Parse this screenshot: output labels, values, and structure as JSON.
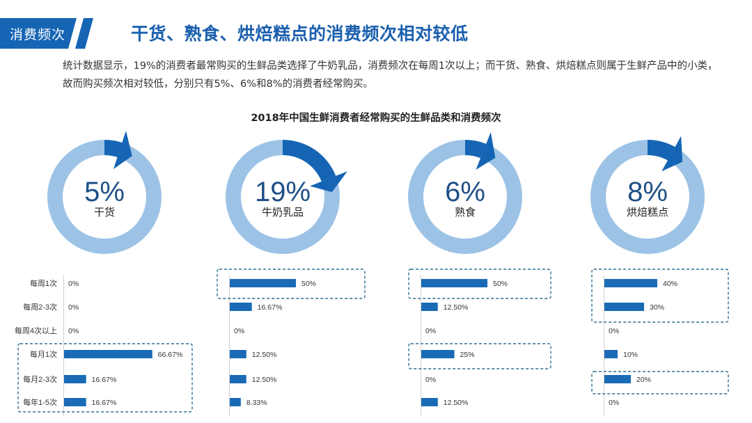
{
  "section_tag": "消费频次",
  "page_title": "干货、熟食、烘焙糕点的消费频次相对较低",
  "intro_text": "统计数据显示，19%的消费者最常购买的生鲜品类选择了牛奶乳品，消费频次在每周1次以上；而干货、熟食、烘焙糕点则属于生鲜产品中的小类，故而购买频次相对较低，分别只有5%、6%和8%的消费者经常购买。",
  "colors": {
    "ring": "#9cc3e6",
    "accent": "#1565b4",
    "bar": "#1a6bb5",
    "dash": "#2c6e91"
  },
  "chart_data": {
    "type": "bar",
    "title": "2018年中国生鲜消费者经常购买的生鲜品类和消费频次",
    "categories": [
      "每周1次",
      "每周2-3次",
      "每周4次以上",
      "每月1次",
      "每月2-3次",
      "每年1-5次"
    ],
    "xlim": [
      0,
      100
    ],
    "series": [
      {
        "name": "干货",
        "share": "5%",
        "share_value": 5,
        "values": [
          0,
          0,
          0,
          66.67,
          16.67,
          16.67
        ],
        "value_labels": [
          "0%",
          "0%",
          "0%",
          "66.67%",
          "16.67%",
          "16.67%"
        ],
        "highlight": [
          3,
          5
        ]
      },
      {
        "name": "牛奶乳品",
        "share": "19%",
        "share_value": 19,
        "values": [
          50,
          16.67,
          0,
          12.5,
          12.5,
          8.33
        ],
        "value_labels": [
          "50%",
          "16.67%",
          "0%",
          "12.50%",
          "12.50%",
          "8.33%"
        ],
        "highlight": [
          0,
          0
        ]
      },
      {
        "name": "熟食",
        "share": "6%",
        "share_value": 6,
        "values": [
          50,
          12.5,
          0,
          25,
          0,
          12.5
        ],
        "value_labels": [
          "50%",
          "12.50%",
          "0%",
          "25%",
          "0%",
          "12.50%"
        ],
        "highlight": [
          0,
          0,
          3,
          3
        ]
      },
      {
        "name": "烘焙糕点",
        "share": "8%",
        "share_value": 8,
        "values": [
          40,
          30,
          0,
          10,
          20,
          0
        ],
        "value_labels": [
          "40%",
          "30%",
          "0%",
          "10%",
          "20%",
          "0%"
        ],
        "highlight": [
          0,
          1,
          4,
          4
        ]
      }
    ]
  }
}
